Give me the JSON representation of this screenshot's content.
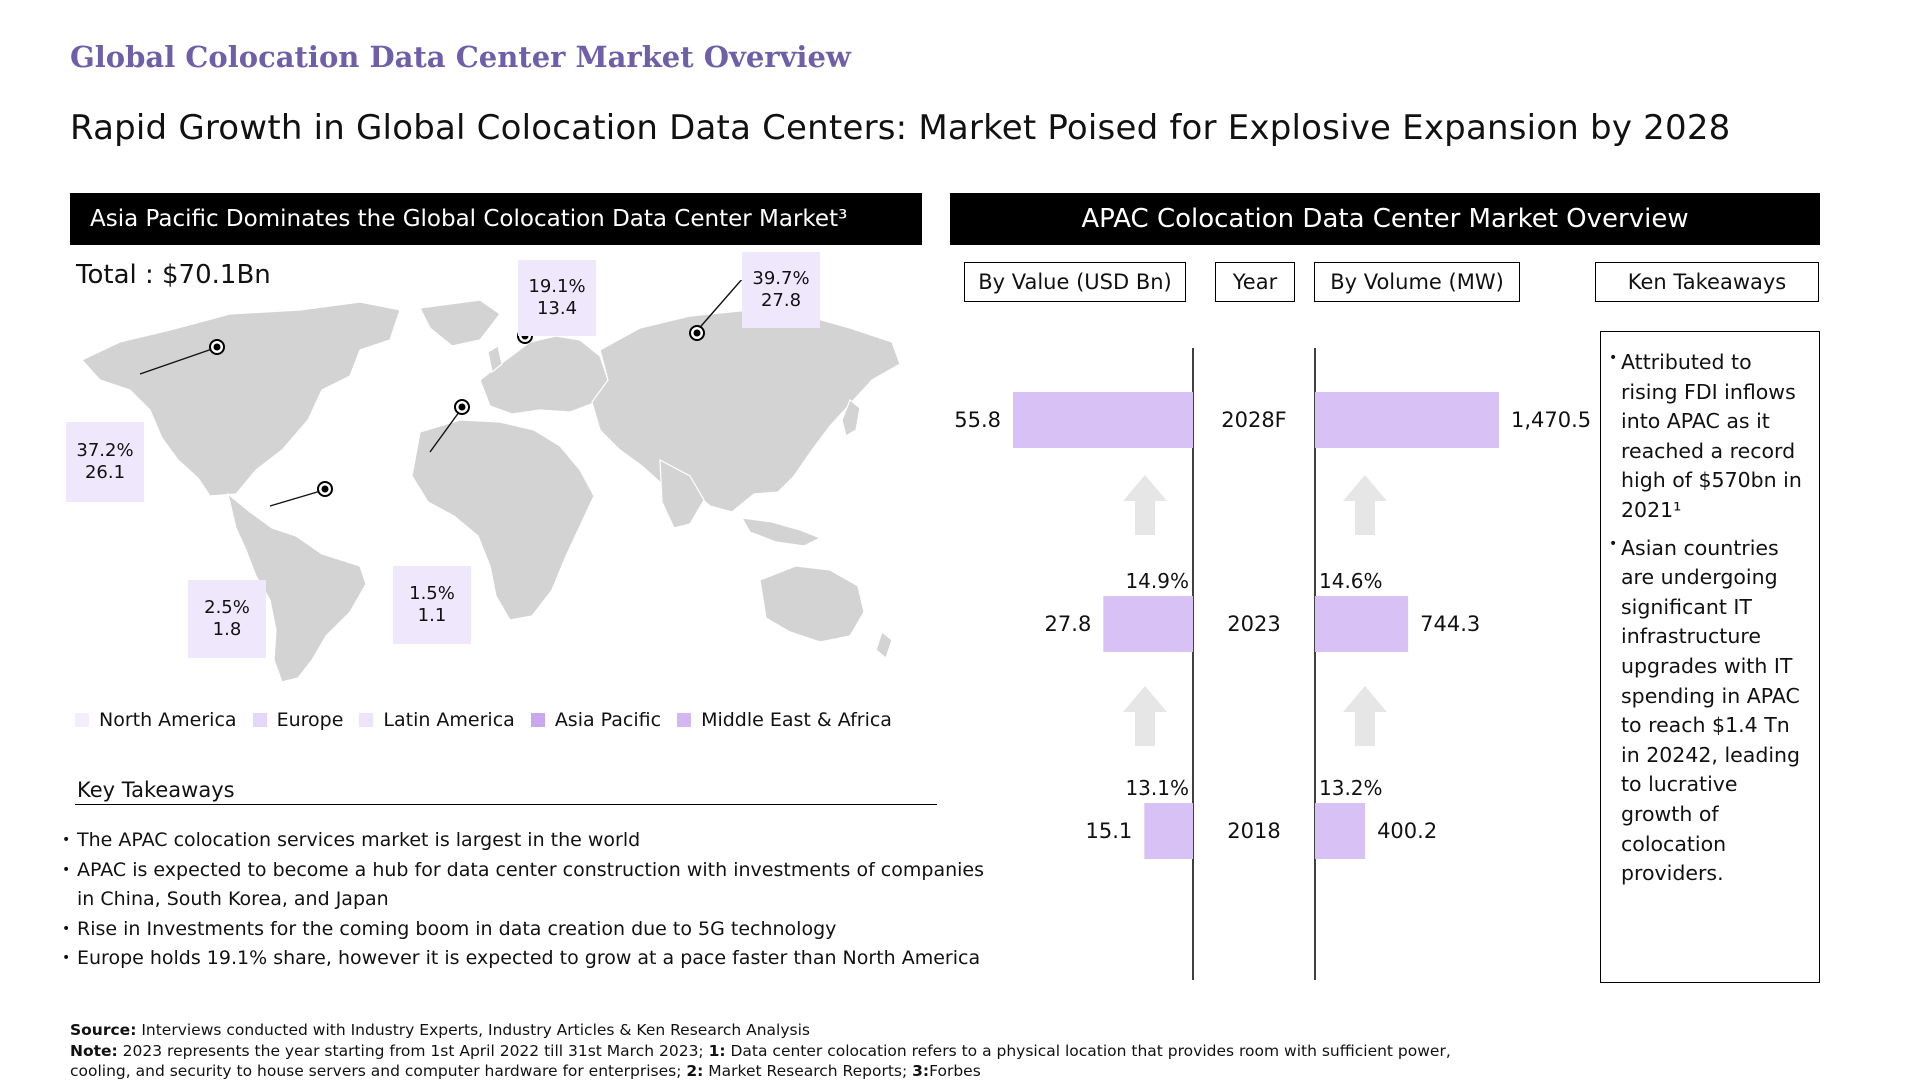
{
  "kicker": "Global Colocation Data Center Market Overview",
  "headline": "Rapid Growth in Global Colocation Data Centers: Market Poised for Explosive Expansion by 2028",
  "left_panel": {
    "title": "Asia Pacific Dominates the Global Colocation Data Center Market³",
    "total": "Total : $70.1Bn",
    "callouts": [
      {
        "region": "North America",
        "share": "37.2%",
        "value": "26.1"
      },
      {
        "region": "Europe",
        "share": "19.1%",
        "value": "13.4"
      },
      {
        "region": "Asia Pacific",
        "share": "39.7%",
        "value": "27.8"
      },
      {
        "region": "Middle East & Africa",
        "share": "1.5%",
        "value": "1.1"
      },
      {
        "region": "Latin America",
        "share": "2.5%",
        "value": "1.8"
      }
    ],
    "legend": [
      {
        "label": "North America",
        "color": "#f3eefb"
      },
      {
        "label": "Europe",
        "color": "#e5d7f7"
      },
      {
        "label": "Latin America",
        "color": "#ede4fa"
      },
      {
        "label": "Asia Pacific",
        "color": "#c9a8ee"
      },
      {
        "label": "Middle East & Africa",
        "color": "#d3b7f2"
      }
    ],
    "key_takeaways_title": "Key Takeaways",
    "key_takeaways": [
      "The APAC colocation services market is largest in the world",
      "APAC is expected to become a hub for data center construction with investments of companies in China, South Korea, and Japan",
      "Rise in Investments for the coming boom in data creation due to 5G technology",
      "Europe holds 19.1% share, however it is expected to grow at a pace faster than North America"
    ]
  },
  "right_panel": {
    "title": "APAC Colocation Data Center Market Overview",
    "headers": {
      "value": "By Value (USD Bn)",
      "year": "Year",
      "volume": "By Volume (MW)",
      "ken": "Ken Takeaways"
    },
    "ken_takeaways": [
      "Attributed to rising FDI inflows into APAC as it reached a record high of $570bn in 2021¹",
      "Asian countries are undergoing significant IT infrastructure upgrades with IT spending in APAC to reach $1.4 Tn in 20242, leading to lucrative growth of colocation providers."
    ]
  },
  "chart_data": [
    {
      "type": "pie",
      "title": "Asia Pacific Dominates the Global Colocation Data Center Market³",
      "unit": "USD Bn",
      "total": 70.1,
      "slices": [
        {
          "name": "North America",
          "share_pct": 37.2,
          "value": 26.1
        },
        {
          "name": "Europe",
          "share_pct": 19.1,
          "value": 13.4
        },
        {
          "name": "Latin America",
          "share_pct": 2.5,
          "value": 1.8
        },
        {
          "name": "Asia Pacific",
          "share_pct": 39.7,
          "value": 27.8
        },
        {
          "name": "Middle East & Africa",
          "share_pct": 1.5,
          "value": 1.1
        }
      ]
    },
    {
      "type": "bar",
      "title": "APAC Colocation Data Center Market Overview",
      "categories": [
        "2028F",
        "2023",
        "2018"
      ],
      "series": [
        {
          "name": "By Value (USD Bn)",
          "values": [
            55.8,
            27.8,
            15.1
          ],
          "labels": [
            "55.8",
            "27.8",
            "15.1"
          ],
          "growth": [
            "14.9%",
            "13.1%"
          ]
        },
        {
          "name": "By Volume (MW)",
          "values": [
            1470.5,
            744.3,
            400.2
          ],
          "labels": [
            "1,470.5",
            "744.3",
            "400.2"
          ],
          "growth": [
            "14.6%",
            "13.2%"
          ]
        }
      ],
      "bar_color": "#d8c1f5"
    }
  ],
  "footer": {
    "source_label": "Source:",
    "source_text": " Interviews conducted with Industry Experts, Industry Articles & Ken Research Analysis",
    "note_label": "Note:",
    "note_text_1": " 2023 represents the year starting from 1st  April 2022 till 31st March 2023; ",
    "note_1_label": "1:",
    "note_text_2": " Data center colocation refers to a physical location that provides room with sufficient power, cooling, and security to house servers and computer hardware for enterprises; ",
    "note_2_label": "2:",
    "note_text_3": " Market Research Reports; ",
    "note_3_label": "3:",
    "note_text_4": "Forbes"
  }
}
